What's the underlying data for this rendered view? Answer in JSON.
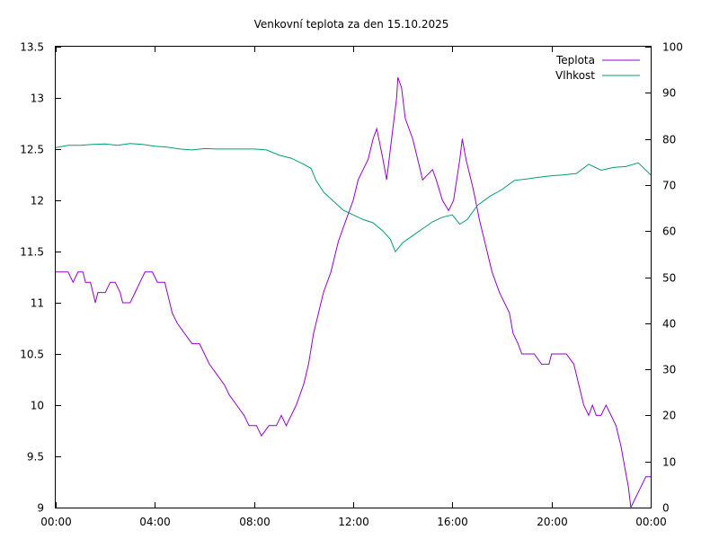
{
  "chart_data": {
    "type": "line",
    "title": "Venkovní teplota za den 15.10.2025",
    "grid": false,
    "legend_position": "top-right",
    "x": {
      "tick_labels": [
        "00:00",
        "04:00",
        "08:00",
        "12:00",
        "16:00",
        "20:00",
        "00:00"
      ],
      "range_hours": [
        0,
        24
      ]
    },
    "y_left": {
      "range": [
        9,
        13.5
      ],
      "tick_labels": [
        "9",
        "9.5",
        "10",
        "10.5",
        "11",
        "11.5",
        "12",
        "12.5",
        "13",
        "13.5"
      ]
    },
    "y_right": {
      "range": [
        0,
        100
      ],
      "tick_labels": [
        "0",
        "10",
        "20",
        "30",
        "40",
        "50",
        "60",
        "70",
        "80",
        "90",
        "100"
      ]
    },
    "series": [
      {
        "name": "Teplota",
        "color": "#9400d3",
        "axis": "left",
        "points": [
          [
            0,
            11.3
          ],
          [
            0.5,
            11.3
          ],
          [
            0.7,
            11.2
          ],
          [
            0.9,
            11.3
          ],
          [
            1.1,
            11.3
          ],
          [
            1.2,
            11.2
          ],
          [
            1.4,
            11.2
          ],
          [
            1.5,
            11.1
          ],
          [
            1.6,
            11.0
          ],
          [
            1.7,
            11.1
          ],
          [
            2.0,
            11.1
          ],
          [
            2.2,
            11.2
          ],
          [
            2.4,
            11.2
          ],
          [
            2.6,
            11.1
          ],
          [
            2.7,
            11.0
          ],
          [
            3.0,
            11.0
          ],
          [
            3.2,
            11.1
          ],
          [
            3.4,
            11.2
          ],
          [
            3.6,
            11.3
          ],
          [
            3.9,
            11.3
          ],
          [
            4.1,
            11.2
          ],
          [
            4.4,
            11.2
          ],
          [
            4.5,
            11.1
          ],
          [
            4.6,
            11.0
          ],
          [
            4.7,
            10.9
          ],
          [
            4.9,
            10.8
          ],
          [
            5.2,
            10.7
          ],
          [
            5.5,
            10.6
          ],
          [
            5.8,
            10.6
          ],
          [
            6.0,
            10.5
          ],
          [
            6.2,
            10.4
          ],
          [
            6.5,
            10.3
          ],
          [
            6.8,
            10.2
          ],
          [
            7.0,
            10.1
          ],
          [
            7.3,
            10.0
          ],
          [
            7.6,
            9.9
          ],
          [
            7.8,
            9.8
          ],
          [
            8.1,
            9.8
          ],
          [
            8.3,
            9.7
          ],
          [
            8.6,
            9.8
          ],
          [
            8.9,
            9.8
          ],
          [
            9.1,
            9.9
          ],
          [
            9.3,
            9.8
          ],
          [
            9.5,
            9.9
          ],
          [
            9.7,
            10.0
          ],
          [
            10.0,
            10.2
          ],
          [
            10.2,
            10.4
          ],
          [
            10.4,
            10.7
          ],
          [
            10.6,
            10.9
          ],
          [
            10.8,
            11.1
          ],
          [
            11.1,
            11.3
          ],
          [
            11.4,
            11.6
          ],
          [
            11.7,
            11.8
          ],
          [
            12.0,
            12.0
          ],
          [
            12.2,
            12.2
          ],
          [
            12.4,
            12.3
          ],
          [
            12.6,
            12.4
          ],
          [
            12.8,
            12.6
          ],
          [
            12.95,
            12.7
          ],
          [
            13.2,
            12.4
          ],
          [
            13.35,
            12.2
          ],
          [
            13.6,
            12.7
          ],
          [
            13.75,
            13.0
          ],
          [
            13.8,
            13.2
          ],
          [
            13.95,
            13.1
          ],
          [
            14.1,
            12.8
          ],
          [
            14.4,
            12.6
          ],
          [
            14.7,
            12.3
          ],
          [
            14.8,
            12.2
          ],
          [
            15.2,
            12.3
          ],
          [
            15.35,
            12.2
          ],
          [
            15.6,
            12.0
          ],
          [
            15.85,
            11.9
          ],
          [
            16.05,
            12.0
          ],
          [
            16.3,
            12.4
          ],
          [
            16.4,
            12.6
          ],
          [
            16.55,
            12.4
          ],
          [
            16.85,
            12.1
          ],
          [
            17.1,
            11.8
          ],
          [
            17.4,
            11.5
          ],
          [
            17.6,
            11.3
          ],
          [
            17.9,
            11.1
          ],
          [
            18.1,
            11.0
          ],
          [
            18.3,
            10.9
          ],
          [
            18.45,
            10.7
          ],
          [
            18.65,
            10.6
          ],
          [
            18.8,
            10.5
          ],
          [
            19.3,
            10.5
          ],
          [
            19.6,
            10.4
          ],
          [
            19.9,
            10.4
          ],
          [
            20.0,
            10.5
          ],
          [
            20.6,
            10.5
          ],
          [
            20.9,
            10.4
          ],
          [
            21.1,
            10.2
          ],
          [
            21.3,
            10.0
          ],
          [
            21.5,
            9.9
          ],
          [
            21.65,
            10.0
          ],
          [
            21.8,
            9.9
          ],
          [
            22.0,
            9.9
          ],
          [
            22.2,
            10.0
          ],
          [
            22.4,
            9.9
          ],
          [
            22.6,
            9.8
          ],
          [
            22.8,
            9.6
          ],
          [
            22.95,
            9.4
          ],
          [
            23.1,
            9.2
          ],
          [
            23.2,
            9.0
          ],
          [
            23.4,
            9.1
          ],
          [
            23.6,
            9.2
          ],
          [
            23.8,
            9.3
          ],
          [
            24.0,
            9.3
          ]
        ]
      },
      {
        "name": "Vlhkost",
        "color": "#009e73",
        "axis": "right",
        "points": [
          [
            0,
            78.1
          ],
          [
            0.5,
            78.6
          ],
          [
            1.0,
            78.6
          ],
          [
            1.5,
            78.8
          ],
          [
            2.0,
            78.9
          ],
          [
            2.5,
            78.6
          ],
          [
            3.0,
            79.0
          ],
          [
            3.5,
            78.8
          ],
          [
            4.0,
            78.4
          ],
          [
            4.5,
            78.2
          ],
          [
            5.0,
            77.8
          ],
          [
            5.5,
            77.6
          ],
          [
            6.0,
            77.9
          ],
          [
            6.5,
            77.8
          ],
          [
            7.0,
            77.8
          ],
          [
            7.5,
            77.8
          ],
          [
            8.0,
            77.8
          ],
          [
            8.5,
            77.6
          ],
          [
            9.0,
            76.5
          ],
          [
            9.5,
            75.8
          ],
          [
            10.0,
            74.5
          ],
          [
            10.3,
            73.6
          ],
          [
            10.5,
            71.0
          ],
          [
            10.8,
            68.5
          ],
          [
            11.2,
            66.5
          ],
          [
            11.6,
            64.5
          ],
          [
            12.0,
            63.5
          ],
          [
            12.4,
            62.5
          ],
          [
            12.8,
            61.8
          ],
          [
            13.2,
            60.0
          ],
          [
            13.5,
            58.2
          ],
          [
            13.7,
            55.5
          ],
          [
            14.0,
            57.5
          ],
          [
            14.4,
            59.0
          ],
          [
            14.8,
            60.5
          ],
          [
            15.2,
            62.0
          ],
          [
            15.6,
            63.0
          ],
          [
            16.0,
            63.5
          ],
          [
            16.3,
            61.5
          ],
          [
            16.6,
            62.5
          ],
          [
            17.0,
            65.5
          ],
          [
            17.5,
            67.5
          ],
          [
            18.0,
            69.0
          ],
          [
            18.5,
            71.0
          ],
          [
            19.0,
            71.3
          ],
          [
            19.5,
            71.7
          ],
          [
            20.0,
            72.0
          ],
          [
            20.5,
            72.2
          ],
          [
            21.0,
            72.5
          ],
          [
            21.5,
            74.5
          ],
          [
            22.0,
            73.2
          ],
          [
            22.5,
            73.8
          ],
          [
            23.0,
            74.0
          ],
          [
            23.5,
            74.8
          ],
          [
            24.0,
            72.2
          ]
        ]
      }
    ]
  }
}
